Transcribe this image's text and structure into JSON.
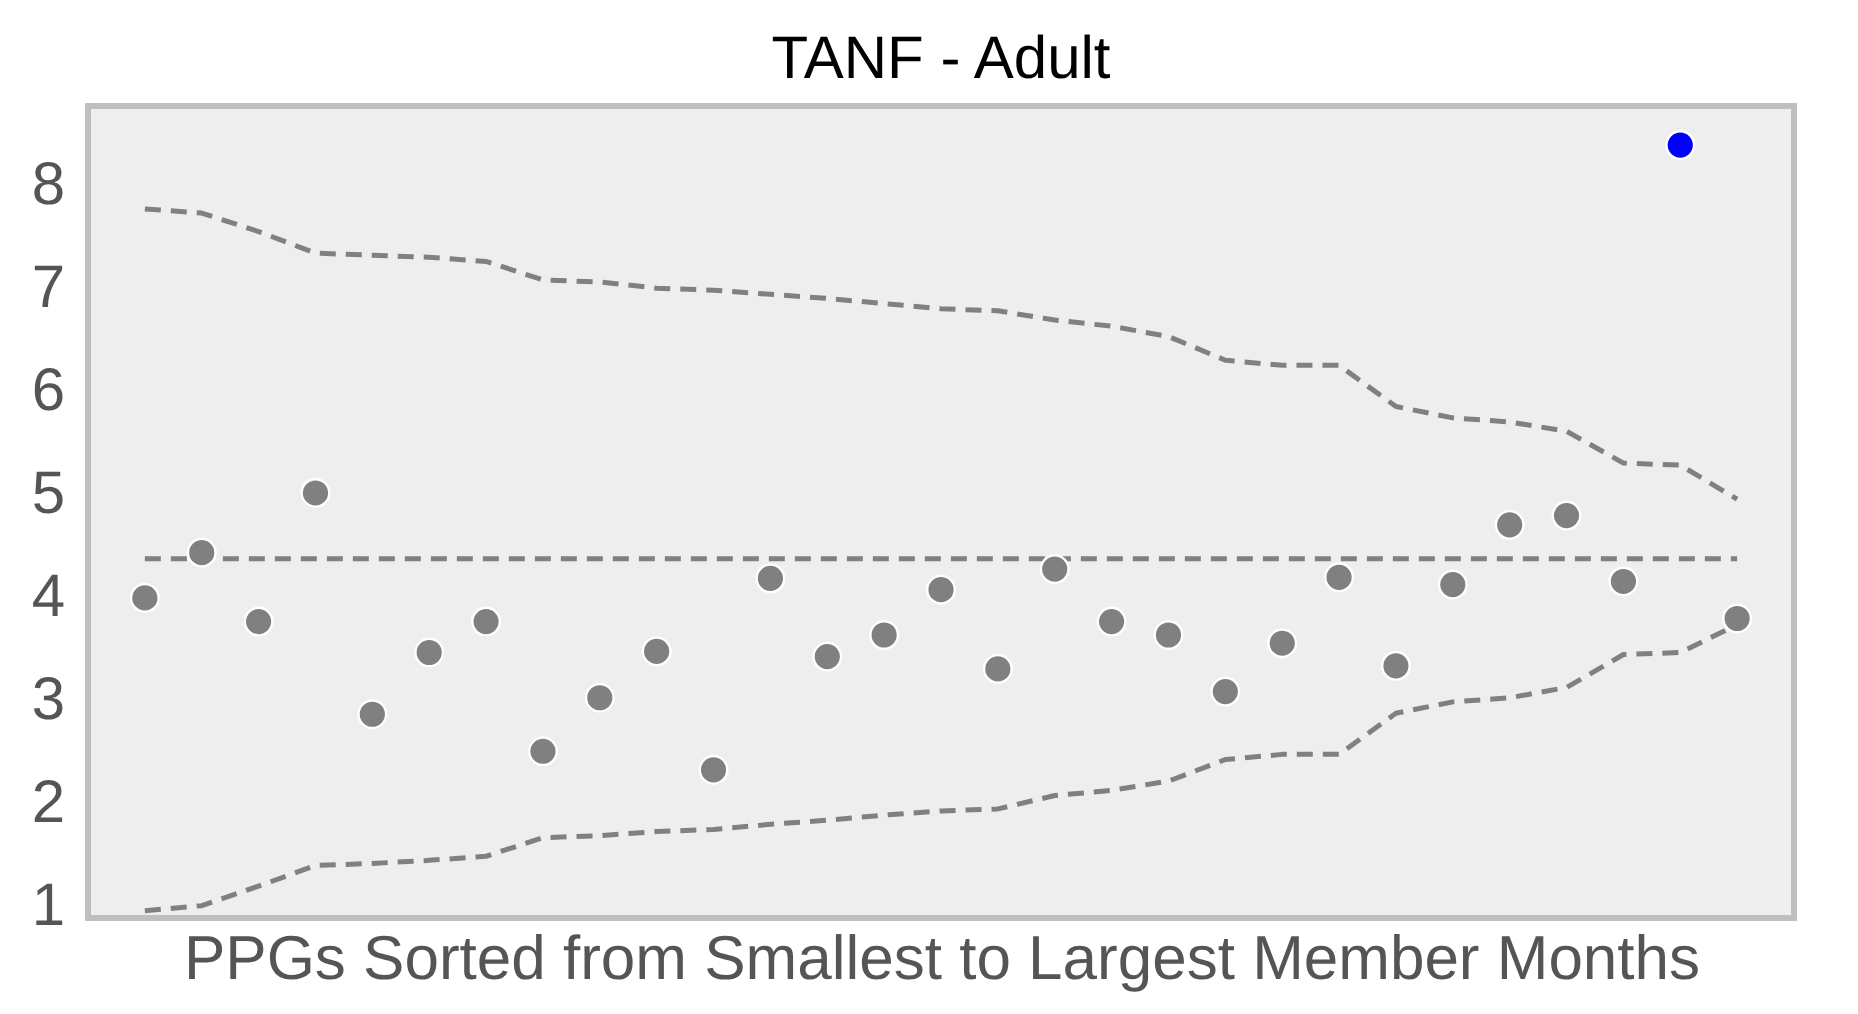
{
  "chart_data": {
    "type": "scatter",
    "title": "TANF - Adult",
    "xlabel": "PPGs Sorted from Smallest to Largest Member Months",
    "categories": [
      null,
      null,
      null,
      null,
      null,
      null,
      null,
      null,
      null,
      null,
      null,
      null,
      null,
      null,
      null,
      null,
      null,
      null,
      null,
      null,
      null,
      null,
      null,
      null,
      null,
      null,
      null,
      null,
      null
    ],
    "ylim": [
      0.88,
      8.77
    ],
    "yticks": [
      1,
      2,
      3,
      4,
      5,
      6,
      7,
      8
    ],
    "tick_labels": "y",
    "series": [
      {
        "type": "line",
        "line_style": "dashed",
        "color": "#808080",
        "values": [
          7.77,
          7.73,
          7.55,
          7.34,
          7.32,
          7.3,
          7.26,
          7.08,
          7.06,
          7.0,
          6.98,
          6.94,
          6.9,
          6.85,
          6.8,
          6.78,
          6.69,
          6.63,
          6.53,
          6.3,
          6.25,
          6.25,
          5.85,
          5.74,
          5.7,
          5.61,
          5.3,
          5.28,
          4.95
        ]
      },
      {
        "type": "line",
        "line_style": "dashed",
        "color": "#808080",
        "values": [
          4.37,
          4.37,
          4.37,
          4.37,
          4.37,
          4.37,
          4.37,
          4.37,
          4.37,
          4.37,
          4.37,
          4.37,
          4.37,
          4.37,
          4.37,
          4.37,
          4.37,
          4.37,
          4.37,
          4.37,
          4.37,
          4.37,
          4.37,
          4.37,
          4.37,
          4.37,
          4.37,
          4.37,
          4.37
        ]
      },
      {
        "type": "line",
        "line_style": "dashed",
        "color": "#808080",
        "values": [
          0.95,
          1.0,
          1.19,
          1.39,
          1.41,
          1.44,
          1.48,
          1.66,
          1.68,
          1.72,
          1.74,
          1.79,
          1.83,
          1.88,
          1.92,
          1.94,
          2.07,
          2.12,
          2.21,
          2.42,
          2.47,
          2.47,
          2.87,
          2.98,
          3.02,
          3.12,
          3.44,
          3.46,
          3.73
        ]
      },
      {
        "marker": "circle",
        "color": "#808080",
        "values": [
          3.99,
          4.43,
          3.76,
          5.01,
          2.86,
          3.46,
          3.76,
          2.5,
          3.02,
          3.47,
          2.32,
          4.18,
          3.42,
          3.63,
          4.07,
          3.3,
          4.27,
          3.76,
          3.63,
          3.08,
          3.55,
          4.19,
          3.33,
          4.12,
          4.7,
          4.79,
          4.15,
          null,
          3.79
        ]
      },
      {
        "marker": "circle",
        "color": "#0000ff",
        "values": [
          null,
          null,
          null,
          null,
          null,
          null,
          null,
          null,
          null,
          null,
          null,
          null,
          null,
          null,
          null,
          null,
          null,
          null,
          null,
          null,
          null,
          null,
          null,
          null,
          null,
          null,
          null,
          8.39,
          null
        ]
      }
    ]
  }
}
